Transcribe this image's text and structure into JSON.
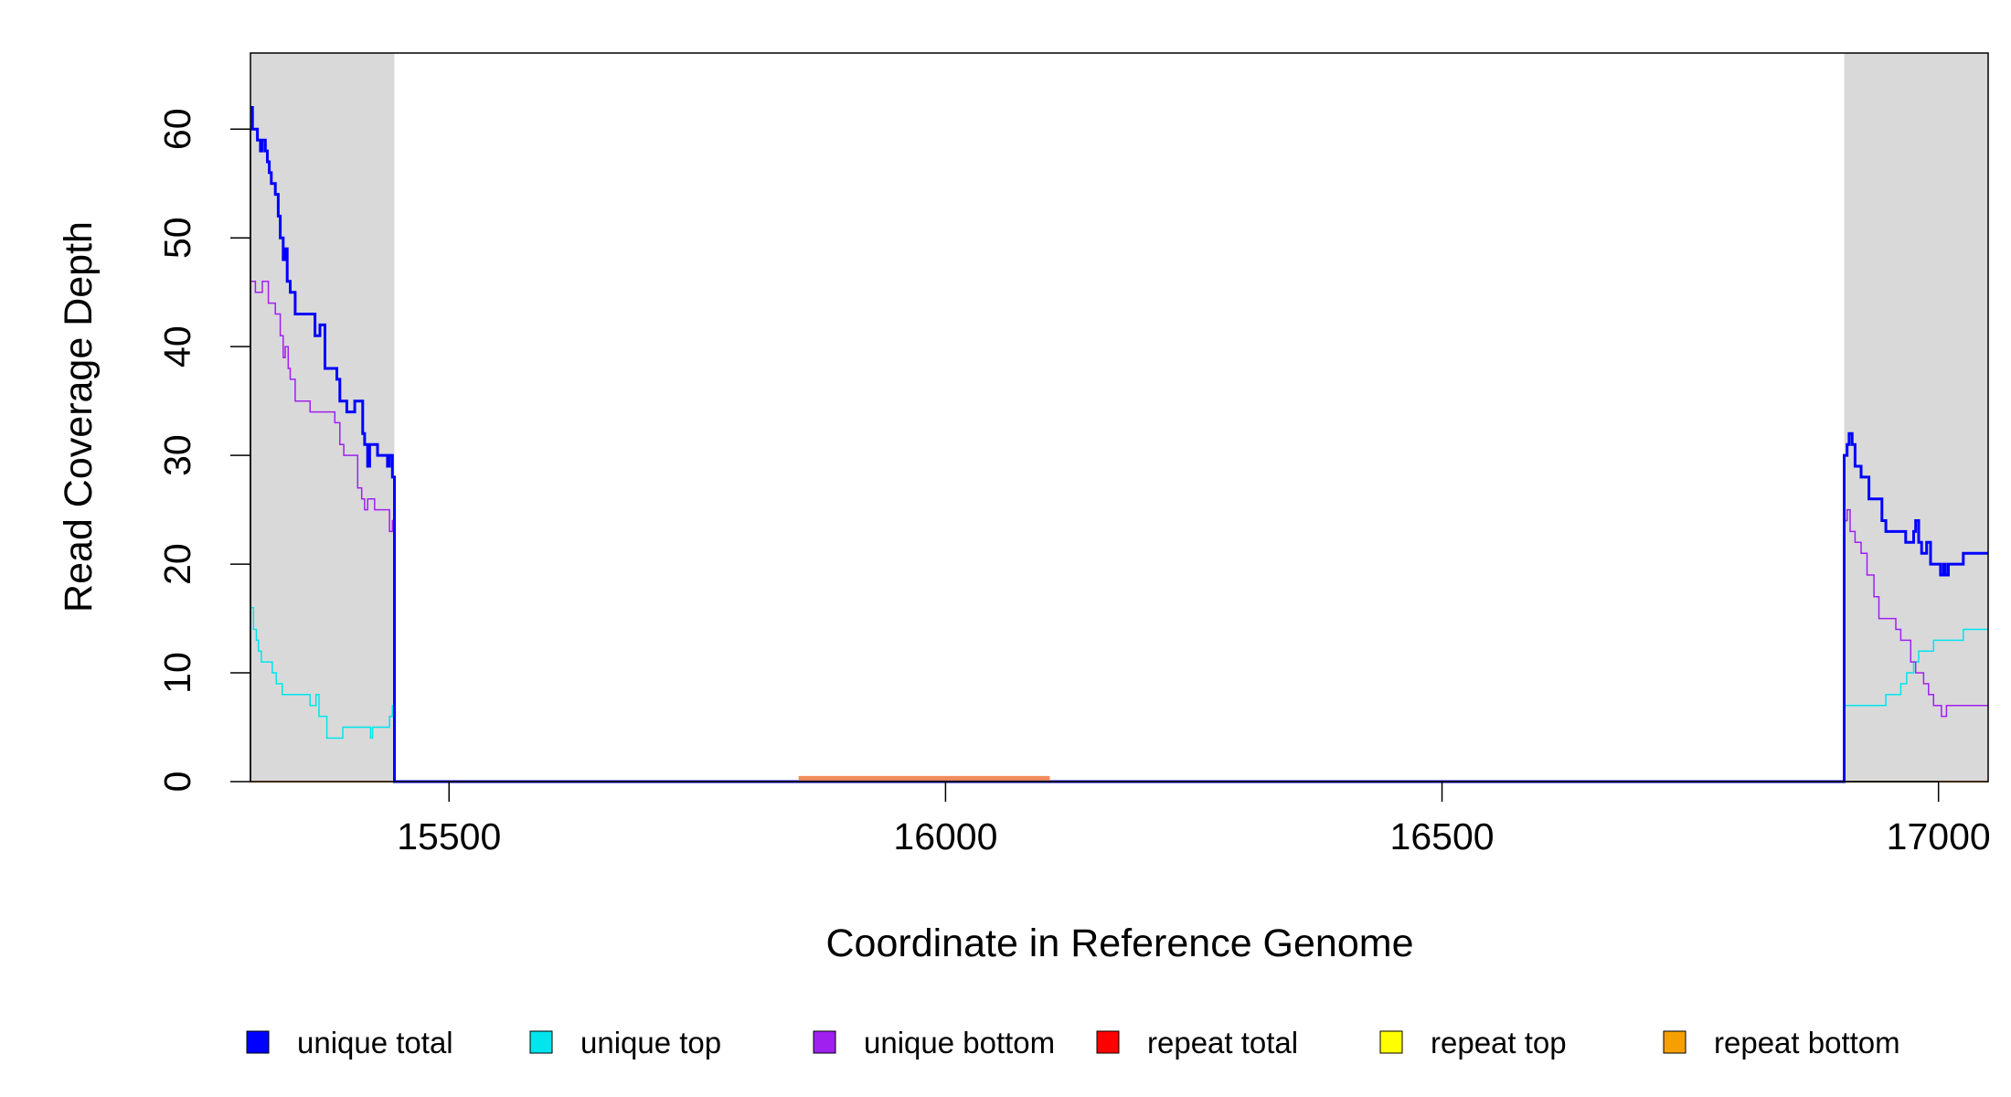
{
  "chart_data": {
    "type": "line",
    "step": true,
    "xlabel": "Coordinate in Reference Genome",
    "ylabel": "Read Coverage Depth",
    "xlim": [
      15300,
      17050
    ],
    "ylim": [
      0,
      67
    ],
    "xticks": [
      15500,
      16000,
      16500,
      17000
    ],
    "yticks": [
      0,
      10,
      20,
      30,
      40,
      50,
      60
    ],
    "shaded_regions": [
      {
        "x": [
          15300,
          15445
        ],
        "color": "#d9d9d9"
      },
      {
        "x": [
          16905,
          17050
        ],
        "color": "#d9d9d9"
      }
    ],
    "legend_position": "bottom",
    "series": [
      {
        "name": "unique total",
        "color": "#0000ff",
        "width": 3,
        "segments": [
          [
            [
              15300,
              62
            ],
            [
              15302,
              60
            ],
            [
              15307,
              59
            ],
            [
              15310,
              58
            ],
            [
              15312,
              59
            ],
            [
              15315,
              58
            ],
            [
              15317,
              57
            ],
            [
              15319,
              56
            ],
            [
              15321,
              55
            ],
            [
              15325,
              54
            ],
            [
              15328,
              52
            ],
            [
              15330,
              50
            ],
            [
              15333,
              48
            ],
            [
              15335,
              49
            ],
            [
              15337,
              46
            ],
            [
              15340,
              45
            ],
            [
              15345,
              43
            ],
            [
              15365,
              41
            ],
            [
              15370,
              42
            ],
            [
              15375,
              38
            ],
            [
              15387,
              37
            ],
            [
              15390,
              35
            ],
            [
              15397,
              34
            ],
            [
              15405,
              35
            ],
            [
              15413,
              32
            ],
            [
              15415,
              31
            ],
            [
              15418,
              29
            ],
            [
              15420,
              31
            ],
            [
              15428,
              30
            ],
            [
              15438,
              29
            ],
            [
              15440,
              30
            ],
            [
              15443,
              28
            ],
            [
              15445,
              0
            ],
            [
              16905,
              0
            ],
            [
              16905,
              30
            ],
            [
              16908,
              31
            ],
            [
              16910,
              32
            ],
            [
              16913,
              31
            ],
            [
              16916,
              29
            ],
            [
              16922,
              28
            ],
            [
              16930,
              26
            ],
            [
              16943,
              24
            ],
            [
              16947,
              23
            ],
            [
              16967,
              22
            ],
            [
              16975,
              23
            ],
            [
              16977,
              24
            ],
            [
              16980,
              22
            ],
            [
              16983,
              21
            ],
            [
              16988,
              22
            ],
            [
              16992,
              20
            ],
            [
              17002,
              19
            ],
            [
              17005,
              20
            ],
            [
              17007,
              19
            ],
            [
              17010,
              20
            ],
            [
              17020,
              20
            ],
            [
              17025,
              21
            ],
            [
              17050,
              21
            ]
          ]
        ]
      },
      {
        "name": "unique top",
        "color": "#00e5ee",
        "width": 1.5,
        "segments": [
          [
            [
              15300,
              16
            ],
            [
              15303,
              14
            ],
            [
              15306,
              13
            ],
            [
              15308,
              12
            ],
            [
              15311,
              11
            ],
            [
              15322,
              10
            ],
            [
              15326,
              9
            ],
            [
              15332,
              8
            ],
            [
              15360,
              7
            ],
            [
              15366,
              8
            ],
            [
              15369,
              6
            ],
            [
              15377,
              4
            ],
            [
              15393,
              5
            ],
            [
              15421,
              4
            ],
            [
              15423,
              5
            ],
            [
              15440,
              6
            ],
            [
              15443,
              7
            ],
            [
              15445,
              0
            ],
            [
              16905,
              0
            ],
            [
              16905,
              7
            ],
            [
              16947,
              8
            ],
            [
              16962,
              9
            ],
            [
              16968,
              10
            ],
            [
              16975,
              11
            ],
            [
              16980,
              12
            ],
            [
              16995,
              13
            ],
            [
              17010,
              13
            ],
            [
              17025,
              14
            ],
            [
              17050,
              14
            ]
          ]
        ]
      },
      {
        "name": "unique bottom",
        "color": "#a020f0",
        "width": 1.5,
        "segments": [
          [
            [
              15300,
              46
            ],
            [
              15305,
              45
            ],
            [
              15312,
              46
            ],
            [
              15318,
              44
            ],
            [
              15325,
              43
            ],
            [
              15330,
              41
            ],
            [
              15333,
              39
            ],
            [
              15335,
              40
            ],
            [
              15338,
              38
            ],
            [
              15340,
              37
            ],
            [
              15345,
              35
            ],
            [
              15360,
              34
            ],
            [
              15385,
              33
            ],
            [
              15390,
              31
            ],
            [
              15394,
              30
            ],
            [
              15408,
              27
            ],
            [
              15412,
              26
            ],
            [
              15415,
              25
            ],
            [
              15418,
              26
            ],
            [
              15425,
              25
            ],
            [
              15440,
              23
            ],
            [
              15443,
              24
            ],
            [
              15445,
              0
            ],
            [
              16905,
              0
            ],
            [
              16905,
              24
            ],
            [
              16908,
              25
            ],
            [
              16911,
              23
            ],
            [
              16916,
              22
            ],
            [
              16922,
              21
            ],
            [
              16928,
              19
            ],
            [
              16935,
              17
            ],
            [
              16940,
              15
            ],
            [
              16957,
              14
            ],
            [
              16962,
              13
            ],
            [
              16972,
              11
            ],
            [
              16977,
              10
            ],
            [
              16985,
              9
            ],
            [
              16990,
              8
            ],
            [
              16995,
              7
            ],
            [
              17003,
              6
            ],
            [
              17008,
              7
            ],
            [
              17050,
              7
            ]
          ]
        ]
      },
      {
        "name": "repeat total",
        "color": "#ff0000",
        "width": 2,
        "segments": [
          [
            [
              15300,
              0
            ],
            [
              17050,
              0
            ]
          ]
        ]
      },
      {
        "name": "repeat top",
        "color": "#ffff00",
        "width": 2,
        "segments": []
      },
      {
        "name": "repeat bottom",
        "color": "#f5a000",
        "width": 2,
        "segments": [
          [
            [
              15300,
              0
            ],
            [
              17050,
              0
            ]
          ]
        ]
      }
    ],
    "annotations": [
      {
        "x": [
          15852,
          16105
        ],
        "y": 0.3,
        "color": "#f08d5a",
        "width": 5
      }
    ]
  }
}
